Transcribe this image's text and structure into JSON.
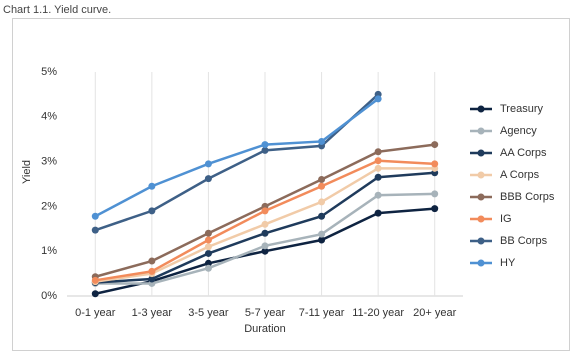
{
  "chart_data": {
    "type": "line",
    "title": "Chart 1.1. Yield curve.",
    "xlabel": "Duration",
    "ylabel": "Yield",
    "categories": [
      "0-1 year",
      "1-3 year",
      "3-5 year",
      "5-7 year",
      "7-11 year",
      "11-20 year",
      "20+ year"
    ],
    "ylim": [
      0,
      5
    ],
    "yticks": [
      {
        "value": 0,
        "label": "0%"
      },
      {
        "value": 1,
        "label": "1%"
      },
      {
        "value": 2,
        "label": "2%"
      },
      {
        "value": 3,
        "label": "3%"
      },
      {
        "value": 4,
        "label": "4%"
      },
      {
        "value": 5,
        "label": "5%"
      }
    ],
    "grid": true,
    "legend": "right",
    "series": [
      {
        "name": "Treasury",
        "color": "#0e2341",
        "values": [
          0.05,
          0.33,
          0.73,
          1.0,
          1.25,
          1.85,
          1.95
        ]
      },
      {
        "name": "Agency",
        "color": "#a7b3ba",
        "values": [
          0.28,
          0.28,
          0.62,
          1.12,
          1.38,
          2.25,
          2.28
        ]
      },
      {
        "name": "AA Corps",
        "color": "#1f3b5c",
        "values": [
          0.3,
          0.38,
          0.95,
          1.4,
          1.78,
          2.65,
          2.75
        ]
      },
      {
        "name": "A Corps",
        "color": "#f1cba8",
        "values": [
          0.32,
          0.5,
          1.1,
          1.6,
          2.1,
          2.85,
          2.85
        ]
      },
      {
        "name": "BBB Corps",
        "color": "#8c6b5b",
        "values": [
          0.43,
          0.78,
          1.4,
          2.0,
          2.6,
          3.22,
          3.38
        ]
      },
      {
        "name": "IG",
        "color": "#f28b5b",
        "values": [
          0.35,
          0.55,
          1.25,
          1.9,
          2.45,
          3.02,
          2.95
        ]
      },
      {
        "name": "BB Corps",
        "color": "#3e6087",
        "values": [
          1.47,
          1.9,
          2.62,
          3.25,
          3.35,
          4.5,
          null
        ]
      },
      {
        "name": "HY",
        "color": "#4f91d3",
        "values": [
          1.78,
          2.45,
          2.95,
          3.38,
          3.45,
          4.4,
          null
        ]
      }
    ]
  }
}
